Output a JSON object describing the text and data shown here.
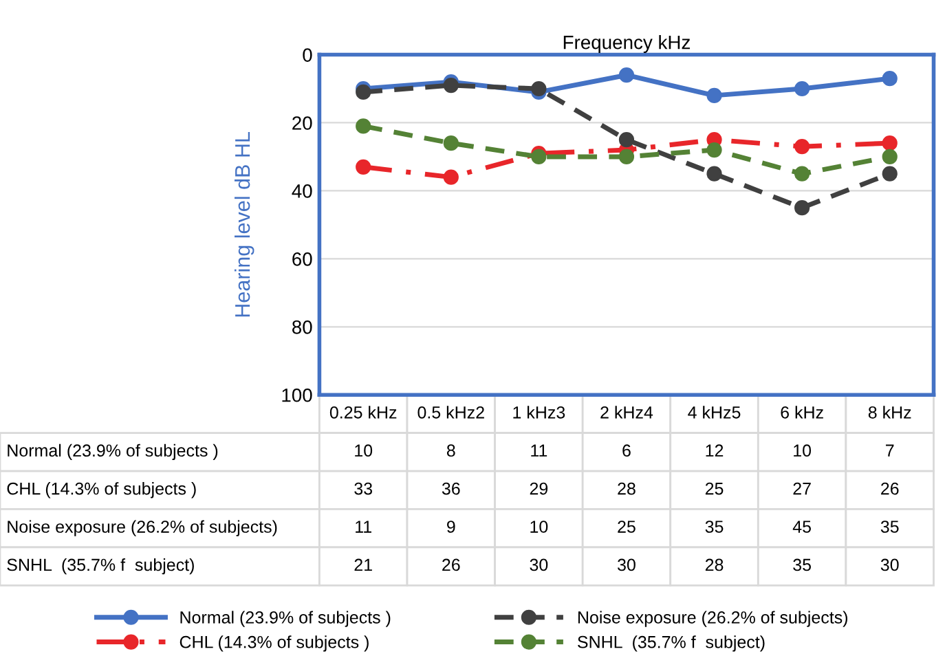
{
  "chart_data": {
    "type": "line",
    "title": "Frequency kHz",
    "ylabel": "Hearing level dB HL",
    "categories": [
      "0.25 kHz",
      "0.5 kHz2",
      "1 kHz3",
      "2 kHz4",
      "4 kHz5",
      "6 kHz",
      "8 kHz"
    ],
    "series": [
      {
        "name": "Normal (23.9% of subjects )",
        "color": "#4472c4",
        "line_style": "solid",
        "values": [
          10,
          8,
          11,
          6,
          12,
          10,
          7
        ]
      },
      {
        "name": "CHL (14.3% of subjects )",
        "color": "#e8262a",
        "line_style": "dashdot",
        "values": [
          33,
          36,
          29,
          28,
          25,
          27,
          26
        ]
      },
      {
        "name": "Noise exposure (26.2% of subjects)",
        "color": "#404040",
        "line_style": "dashed",
        "values": [
          11,
          9,
          10,
          25,
          35,
          45,
          35
        ]
      },
      {
        "name": "SNHL  (35.7% f  subject)",
        "color": "#548235",
        "line_style": "dashed",
        "values": [
          21,
          26,
          30,
          30,
          28,
          35,
          30
        ]
      }
    ],
    "ylim": [
      100,
      0
    ],
    "yticks": [
      0,
      20,
      40,
      60,
      80,
      100
    ],
    "grid": "y",
    "marker": "circle",
    "data_labels": true,
    "legend": "bottom"
  }
}
